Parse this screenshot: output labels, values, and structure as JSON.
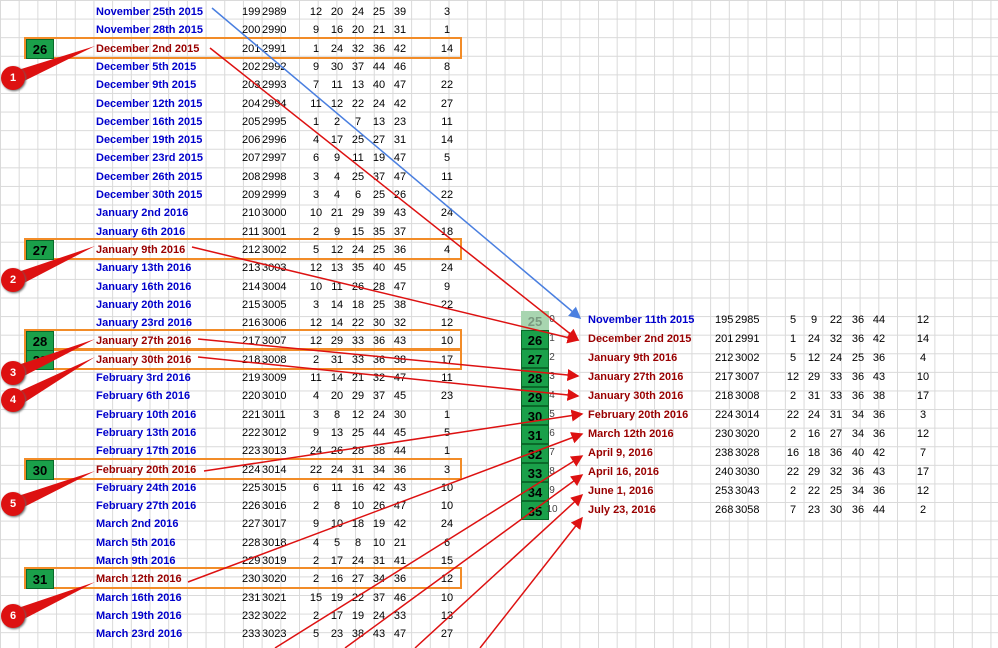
{
  "left_rows": [
    {
      "date": "November 25th 2015",
      "idx": "199",
      "id": "2989",
      "nums": [
        "12",
        "20",
        "24",
        "25",
        "39"
      ],
      "last": "3",
      "hl": false
    },
    {
      "date": "November 28th 2015",
      "idx": "200",
      "id": "2990",
      "nums": [
        "9",
        "16",
        "20",
        "21",
        "31"
      ],
      "last": "1",
      "hl": false
    },
    {
      "date": "December 2nd 2015",
      "idx": "201",
      "id": "2991",
      "nums": [
        "1",
        "24",
        "32",
        "36",
        "42"
      ],
      "last": "14",
      "hl": true
    },
    {
      "date": "December 5th 2015",
      "idx": "202",
      "id": "2992",
      "nums": [
        "9",
        "30",
        "37",
        "44",
        "46"
      ],
      "last": "8",
      "hl": false
    },
    {
      "date": "December 9th 2015",
      "idx": "203",
      "id": "2993",
      "nums": [
        "7",
        "11",
        "13",
        "40",
        "47"
      ],
      "last": "22",
      "hl": false
    },
    {
      "date": "December 12th 2015",
      "idx": "204",
      "id": "2994",
      "nums": [
        "11",
        "12",
        "22",
        "24",
        "42"
      ],
      "last": "27",
      "hl": false
    },
    {
      "date": "December 16th 2015",
      "idx": "205",
      "id": "2995",
      "nums": [
        "1",
        "2",
        "7",
        "13",
        "23"
      ],
      "last": "11",
      "hl": false
    },
    {
      "date": "December 19th 2015",
      "idx": "206",
      "id": "2996",
      "nums": [
        "4",
        "17",
        "25",
        "27",
        "31"
      ],
      "last": "14",
      "hl": false
    },
    {
      "date": "December 23rd 2015",
      "idx": "207",
      "id": "2997",
      "nums": [
        "6",
        "9",
        "11",
        "19",
        "47"
      ],
      "last": "5",
      "hl": false
    },
    {
      "date": "December 26th 2015",
      "idx": "208",
      "id": "2998",
      "nums": [
        "3",
        "4",
        "25",
        "37",
        "47"
      ],
      "last": "11",
      "hl": false
    },
    {
      "date": "December 30th 2015",
      "idx": "209",
      "id": "2999",
      "nums": [
        "3",
        "4",
        "6",
        "25",
        "26"
      ],
      "last": "22",
      "hl": false
    },
    {
      "date": "January 2nd 2016",
      "idx": "210",
      "id": "3000",
      "nums": [
        "10",
        "21",
        "29",
        "39",
        "43"
      ],
      "last": "24",
      "hl": false
    },
    {
      "date": "January 6th 2016",
      "idx": "211",
      "id": "3001",
      "nums": [
        "2",
        "9",
        "15",
        "35",
        "37"
      ],
      "last": "18",
      "hl": false
    },
    {
      "date": "January 9th 2016",
      "idx": "212",
      "id": "3002",
      "nums": [
        "5",
        "12",
        "24",
        "25",
        "36"
      ],
      "last": "4",
      "hl": true
    },
    {
      "date": "January 13th 2016",
      "idx": "213",
      "id": "3003",
      "nums": [
        "12",
        "13",
        "35",
        "40",
        "45"
      ],
      "last": "24",
      "hl": false
    },
    {
      "date": "January 16th 2016",
      "idx": "214",
      "id": "3004",
      "nums": [
        "10",
        "11",
        "26",
        "28",
        "47"
      ],
      "last": "9",
      "hl": false
    },
    {
      "date": "January 20th 2016",
      "idx": "215",
      "id": "3005",
      "nums": [
        "3",
        "14",
        "18",
        "25",
        "38"
      ],
      "last": "22",
      "hl": false
    },
    {
      "date": "January 23rd 2016",
      "idx": "216",
      "id": "3006",
      "nums": [
        "12",
        "14",
        "22",
        "30",
        "32"
      ],
      "last": "12",
      "hl": false
    },
    {
      "date": "January 27th 2016",
      "idx": "217",
      "id": "3007",
      "nums": [
        "12",
        "29",
        "33",
        "36",
        "43"
      ],
      "last": "10",
      "hl": true
    },
    {
      "date": "January 30th 2016",
      "idx": "218",
      "id": "3008",
      "nums": [
        "2",
        "31",
        "33",
        "36",
        "38"
      ],
      "last": "17",
      "hl": true
    },
    {
      "date": "February 3rd 2016",
      "idx": "219",
      "id": "3009",
      "nums": [
        "11",
        "14",
        "21",
        "32",
        "47"
      ],
      "last": "11",
      "hl": false
    },
    {
      "date": "February 6th 2016",
      "idx": "220",
      "id": "3010",
      "nums": [
        "4",
        "20",
        "29",
        "37",
        "45"
      ],
      "last": "23",
      "hl": false
    },
    {
      "date": "February 10th 2016",
      "idx": "221",
      "id": "3011",
      "nums": [
        "3",
        "8",
        "12",
        "24",
        "30"
      ],
      "last": "1",
      "hl": false
    },
    {
      "date": "February 13th 2016",
      "idx": "222",
      "id": "3012",
      "nums": [
        "9",
        "13",
        "25",
        "44",
        "45"
      ],
      "last": "5",
      "hl": false
    },
    {
      "date": "February 17th 2016",
      "idx": "223",
      "id": "3013",
      "nums": [
        "24",
        "26",
        "28",
        "38",
        "44"
      ],
      "last": "1",
      "hl": false
    },
    {
      "date": "February 20th 2016",
      "idx": "224",
      "id": "3014",
      "nums": [
        "22",
        "24",
        "31",
        "34",
        "36"
      ],
      "last": "3",
      "hl": true
    },
    {
      "date": "February 24th 2016",
      "idx": "225",
      "id": "3015",
      "nums": [
        "6",
        "11",
        "16",
        "42",
        "43"
      ],
      "last": "10",
      "hl": false
    },
    {
      "date": "February 27th 2016",
      "idx": "226",
      "id": "3016",
      "nums": [
        "2",
        "8",
        "10",
        "26",
        "47"
      ],
      "last": "10",
      "hl": false
    },
    {
      "date": "March 2nd 2016",
      "idx": "227",
      "id": "3017",
      "nums": [
        "9",
        "10",
        "18",
        "19",
        "42"
      ],
      "last": "24",
      "hl": false
    },
    {
      "date": "March 5th 2016",
      "idx": "228",
      "id": "3018",
      "nums": [
        "4",
        "5",
        "8",
        "10",
        "21"
      ],
      "last": "6",
      "hl": false
    },
    {
      "date": "March 9th 2016",
      "idx": "229",
      "id": "3019",
      "nums": [
        "2",
        "17",
        "24",
        "31",
        "41"
      ],
      "last": "15",
      "hl": false
    },
    {
      "date": "March 12th 2016",
      "idx": "230",
      "id": "3020",
      "nums": [
        "2",
        "16",
        "27",
        "34",
        "36"
      ],
      "last": "12",
      "hl": true
    },
    {
      "date": "March 16th 2016",
      "idx": "231",
      "id": "3021",
      "nums": [
        "15",
        "19",
        "22",
        "37",
        "46"
      ],
      "last": "10",
      "hl": false
    },
    {
      "date": "March 19th 2016",
      "idx": "232",
      "id": "3022",
      "nums": [
        "2",
        "17",
        "19",
        "24",
        "33"
      ],
      "last": "13",
      "hl": false
    },
    {
      "date": "March 23rd 2016",
      "idx": "233",
      "id": "3023",
      "nums": [
        "5",
        "23",
        "38",
        "43",
        "47"
      ],
      "last": "27",
      "hl": false
    }
  ],
  "left_badges": [
    "26",
    "27",
    "28",
    "29",
    "30",
    "31"
  ],
  "markers": [
    "1",
    "2",
    "3",
    "4",
    "5",
    "6"
  ],
  "right_badges": [
    "25",
    "26",
    "27",
    "28",
    "29",
    "30",
    "31",
    "32",
    "33",
    "34",
    "35"
  ],
  "right_ordinals": [
    "0",
    "1",
    "2",
    "3",
    "4",
    "5",
    "6",
    "7",
    "8",
    "9",
    "10"
  ],
  "right_rows": [
    {
      "date": "November 11th 2015",
      "idx": "195",
      "id": "2985",
      "nums": [
        "5",
        "9",
        "22",
        "36",
        "44"
      ],
      "last": "12",
      "blue": true
    },
    {
      "date": "December 2nd 2015",
      "idx": "201",
      "id": "2991",
      "nums": [
        "1",
        "24",
        "32",
        "36",
        "42"
      ],
      "last": "14",
      "blue": false
    },
    {
      "date": "January 9th 2016",
      "idx": "212",
      "id": "3002",
      "nums": [
        "5",
        "12",
        "24",
        "25",
        "36"
      ],
      "last": "4",
      "blue": false
    },
    {
      "date": "January 27th 2016",
      "idx": "217",
      "id": "3007",
      "nums": [
        "12",
        "29",
        "33",
        "36",
        "43"
      ],
      "last": "10",
      "blue": false
    },
    {
      "date": "January 30th 2016",
      "idx": "218",
      "id": "3008",
      "nums": [
        "2",
        "31",
        "33",
        "36",
        "38"
      ],
      "last": "17",
      "blue": false
    },
    {
      "date": "February 20th 2016",
      "idx": "224",
      "id": "3014",
      "nums": [
        "22",
        "24",
        "31",
        "34",
        "36"
      ],
      "last": "3",
      "blue": false
    },
    {
      "date": "March 12th 2016",
      "idx": "230",
      "id": "3020",
      "nums": [
        "2",
        "16",
        "27",
        "34",
        "36"
      ],
      "last": "12",
      "blue": false
    },
    {
      "date": "April 9, 2016",
      "idx": "238",
      "id": "3028",
      "nums": [
        "16",
        "18",
        "36",
        "40",
        "42"
      ],
      "last": "7",
      "blue": false
    },
    {
      "date": "April 16, 2016",
      "idx": "240",
      "id": "3030",
      "nums": [
        "22",
        "29",
        "32",
        "36",
        "43"
      ],
      "last": "17",
      "blue": false
    },
    {
      "date": "June 1, 2016",
      "idx": "253",
      "id": "3043",
      "nums": [
        "2",
        "22",
        "25",
        "34",
        "36"
      ],
      "last": "12",
      "blue": false
    },
    {
      "date": "July 23, 2016",
      "idx": "268",
      "id": "3058",
      "nums": [
        "7",
        "23",
        "30",
        "36",
        "44"
      ],
      "last": "2",
      "blue": false
    }
  ],
  "colors": {
    "accent_red": "#dd1111",
    "highlight_orange": "#f28c28",
    "badge_green": "#1aa04a",
    "date_blue": "#0000cc",
    "date_darkred": "#990000",
    "arrow_blue": "#4a7fe0"
  }
}
